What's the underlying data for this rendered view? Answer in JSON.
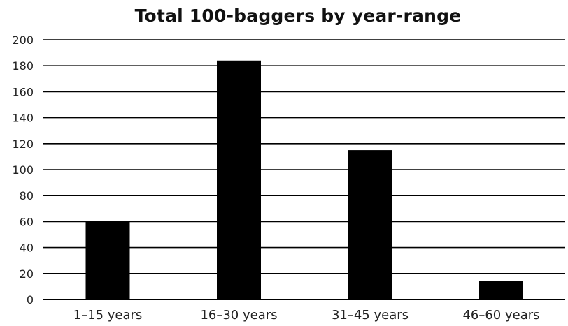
{
  "chart_data": {
    "type": "bar",
    "title": "Total 100-baggers by year-range",
    "xlabel": "",
    "ylabel": "",
    "categories": [
      "1–15 years",
      "16–30 years",
      "31–45 years",
      "46–60 years"
    ],
    "values": [
      60,
      184,
      115,
      14
    ],
    "ylim": [
      0,
      200
    ],
    "yticks": [
      0,
      20,
      40,
      60,
      80,
      100,
      120,
      140,
      160,
      180,
      200
    ],
    "grid": true,
    "bar_color": "#000000",
    "grid_color": "#000000",
    "text_color": "#222222"
  }
}
